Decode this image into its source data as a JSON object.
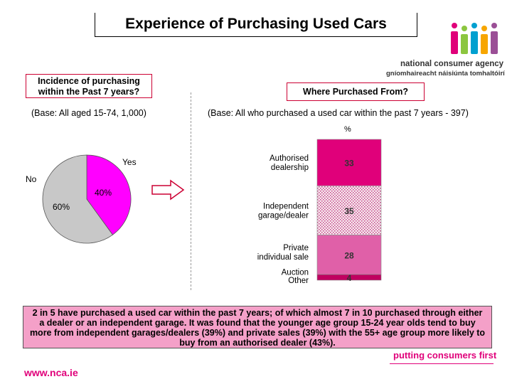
{
  "title": "Experience of Purchasing Used Cars",
  "brand": {
    "line1": "national consumer agency",
    "line2": "gníomhaireacht náisiúnta tomhaltóirí",
    "tagline": "putting consumers first",
    "url": "www.nca.ie",
    "colors": [
      "#e0007a",
      "#8cc63f",
      "#00a0d0",
      "#f7a600",
      "#9b4f96"
    ]
  },
  "left_panel": {
    "question": "Incidence of purchasing within the Past 7 years?",
    "base": "(Base:  All aged 15-74, 1,000)"
  },
  "right_panel": {
    "question": "Where Purchased From?",
    "base": "(Base:  All who purchased a used car within the past 7 years - 397)",
    "unit": "%"
  },
  "arrow_icon": "right-arrow-icon",
  "summary": "2 in 5 have purchased a used car within the past 7 years; of which almost 7 in 10 purchased through either a dealer or an independent garage. It was found that the younger age group 15-24 year olds tend to buy more from independent garages/dealers (39%) and private sales (39%) with the 55+ age group more likely to buy from an authorised dealer (43%).",
  "chart_data": [
    {
      "type": "pie",
      "slices": [
        {
          "name": "Yes",
          "value": 40,
          "label": "40%",
          "color": "#ff00ff"
        },
        {
          "name": "No",
          "value": 60,
          "label": "60%",
          "color": "#c8c8c8"
        }
      ]
    },
    {
      "type": "bar",
      "orientation": "stacked-vertical",
      "categories": [
        "Authorised dealership",
        "Independent garage/dealer",
        "Private individual sale",
        "Auction",
        "Other"
      ],
      "values": [
        33,
        35,
        28,
        0,
        4
      ],
      "value_labels": [
        "33",
        "35",
        "28",
        "",
        "4"
      ],
      "colors": [
        "#e0007a",
        "#f0c8dc",
        "#e060a8",
        "#c00060",
        "#c00060"
      ]
    }
  ]
}
